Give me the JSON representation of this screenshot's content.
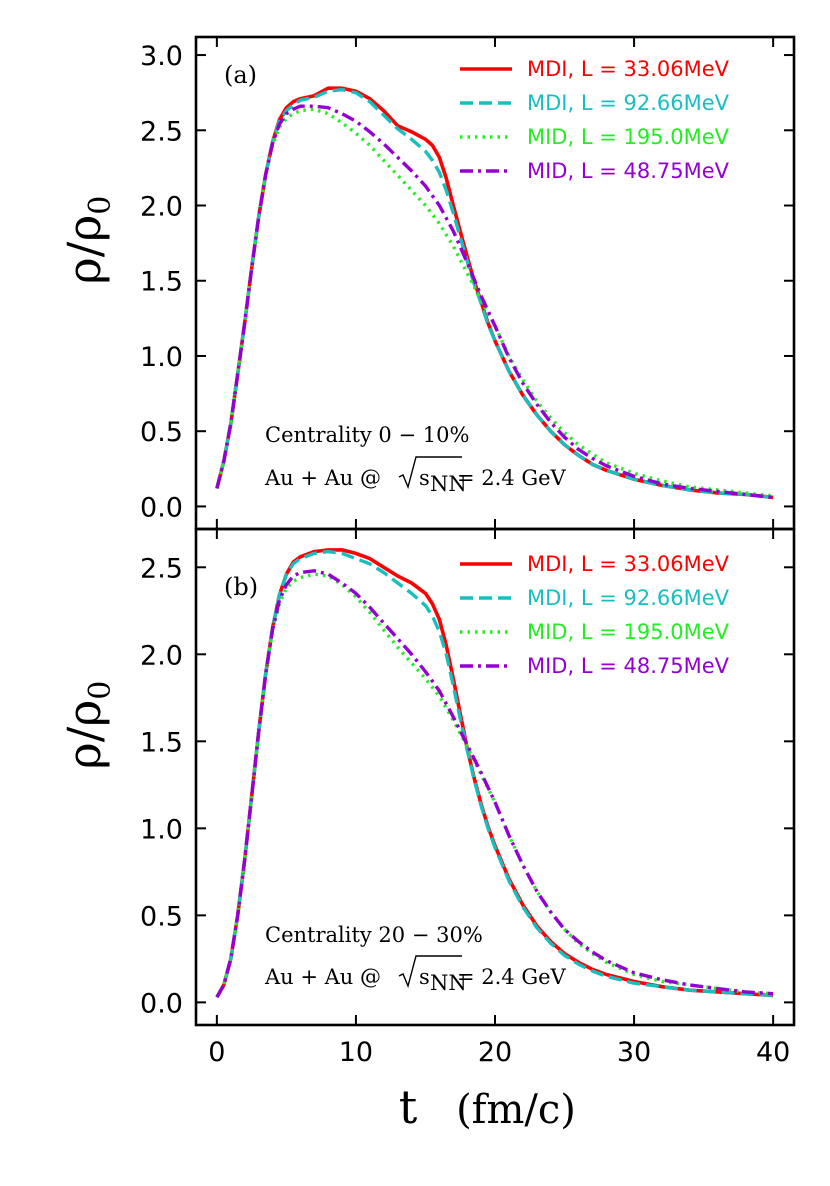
{
  "chart_data": [
    {
      "type": "line",
      "panel_label": "(a)",
      "xlabel_main": "t",
      "xlabel_unit": "(fm/c)",
      "ylabel": "ρ/ρ",
      "ylabel_sub": "0",
      "xlim": [
        -1.5,
        41.5
      ],
      "ylim": [
        -0.15,
        3.12
      ],
      "xticks": [
        0,
        10,
        20,
        30,
        40
      ],
      "yticks": [
        0.0,
        0.5,
        1.0,
        1.5,
        2.0,
        2.5,
        3.0
      ],
      "ytick_labels": [
        "0.0",
        "0.5",
        "1.0",
        "1.5",
        "2.0",
        "2.5",
        "3.0"
      ],
      "annotation_line1": "Centrality 0 − 10%",
      "annotation_line2_prefix": "Au + Au @",
      "annotation_line2_sqrt": "s",
      "annotation_line2_sub": "NN",
      "annotation_line2_suffix": " = 2.4 GeV",
      "series": [
        {
          "name": "MDI, L = 33.06MeV",
          "color": "#ff0000",
          "dash": "solid",
          "x": [
            0,
            0.5,
            1,
            1.5,
            2,
            2.5,
            3,
            3.5,
            4,
            4.5,
            5,
            5.5,
            6,
            7,
            8,
            9,
            10,
            11,
            12,
            13,
            14,
            15,
            15.5,
            16,
            16.5,
            17,
            17.5,
            18,
            18.5,
            19,
            19.5,
            20,
            21,
            22,
            23,
            24,
            25,
            26,
            27,
            28,
            30,
            32,
            34,
            36,
            38,
            40
          ],
          "y": [
            0.12,
            0.3,
            0.55,
            0.88,
            1.22,
            1.58,
            1.92,
            2.2,
            2.42,
            2.57,
            2.65,
            2.69,
            2.71,
            2.73,
            2.78,
            2.78,
            2.76,
            2.71,
            2.63,
            2.53,
            2.49,
            2.44,
            2.4,
            2.32,
            2.18,
            2.0,
            1.83,
            1.66,
            1.5,
            1.36,
            1.22,
            1.1,
            0.9,
            0.74,
            0.61,
            0.5,
            0.41,
            0.34,
            0.28,
            0.24,
            0.18,
            0.14,
            0.11,
            0.09,
            0.08,
            0.06
          ]
        },
        {
          "name": "MDI, L = 92.66MeV",
          "color": "#17bfbf",
          "dash": "dashed",
          "x": [
            0,
            0.5,
            1,
            1.5,
            2,
            2.5,
            3,
            3.5,
            4,
            4.5,
            5,
            5.5,
            6,
            7,
            8,
            9,
            10,
            11,
            12,
            13,
            14,
            15,
            15.5,
            16,
            16.5,
            17,
            17.5,
            18,
            18.5,
            19,
            19.5,
            20,
            21,
            22,
            23,
            24,
            25,
            26,
            27,
            28,
            30,
            32,
            34,
            36,
            38,
            40
          ],
          "y": [
            0.12,
            0.3,
            0.55,
            0.88,
            1.22,
            1.58,
            1.92,
            2.2,
            2.42,
            2.56,
            2.63,
            2.67,
            2.7,
            2.72,
            2.76,
            2.77,
            2.75,
            2.69,
            2.6,
            2.51,
            2.44,
            2.36,
            2.3,
            2.22,
            2.1,
            1.95,
            1.79,
            1.63,
            1.48,
            1.35,
            1.21,
            1.1,
            0.9,
            0.74,
            0.61,
            0.5,
            0.41,
            0.34,
            0.28,
            0.24,
            0.18,
            0.14,
            0.11,
            0.09,
            0.08,
            0.06
          ]
        },
        {
          "name": "MID, L = 195.0MeV",
          "color": "#22ee22",
          "dash": "dotted",
          "x": [
            0,
            0.5,
            1,
            1.5,
            2,
            2.5,
            3,
            3.5,
            4,
            4.5,
            5,
            5.5,
            6,
            7,
            8,
            9,
            10,
            11,
            12,
            13,
            14,
            15,
            16,
            17,
            18,
            19,
            20,
            21,
            22,
            23,
            24,
            25,
            26,
            27,
            28,
            30,
            32,
            34,
            36,
            38,
            40
          ],
          "y": [
            0.12,
            0.3,
            0.55,
            0.88,
            1.22,
            1.58,
            1.92,
            2.2,
            2.4,
            2.52,
            2.58,
            2.61,
            2.63,
            2.64,
            2.61,
            2.55,
            2.48,
            2.4,
            2.3,
            2.2,
            2.1,
            2.0,
            1.88,
            1.73,
            1.55,
            1.37,
            1.2,
            1.0,
            0.84,
            0.7,
            0.59,
            0.49,
            0.41,
            0.35,
            0.29,
            0.22,
            0.17,
            0.13,
            0.11,
            0.09,
            0.07
          ]
        },
        {
          "name": "MID, L = 48.75MeV",
          "color": "#9400d3",
          "dash": "dashdot",
          "x": [
            0,
            0.5,
            1,
            1.5,
            2,
            2.5,
            3,
            3.5,
            4,
            4.5,
            5,
            5.5,
            6,
            7,
            8,
            9,
            10,
            11,
            12,
            13,
            14,
            15,
            16,
            17,
            18,
            19,
            20,
            21,
            22,
            23,
            24,
            25,
            26,
            27,
            28,
            30,
            32,
            34,
            36,
            38,
            40
          ],
          "y": [
            0.12,
            0.3,
            0.55,
            0.88,
            1.22,
            1.58,
            1.92,
            2.2,
            2.41,
            2.54,
            2.61,
            2.64,
            2.66,
            2.66,
            2.65,
            2.61,
            2.56,
            2.49,
            2.41,
            2.32,
            2.23,
            2.13,
            2.0,
            1.83,
            1.62,
            1.4,
            1.2,
            0.99,
            0.82,
            0.68,
            0.56,
            0.46,
            0.38,
            0.32,
            0.27,
            0.2,
            0.15,
            0.12,
            0.1,
            0.08,
            0.06
          ]
        }
      ]
    },
    {
      "type": "line",
      "panel_label": "(b)",
      "xlabel_main": "t",
      "xlabel_unit": "(fm/c)",
      "ylabel": "ρ/ρ",
      "ylabel_sub": "0",
      "xlim": [
        -1.5,
        41.5
      ],
      "ylim": [
        -0.13,
        2.72
      ],
      "xticks": [
        0,
        10,
        20,
        30,
        40
      ],
      "xtick_labels": [
        "0",
        "10",
        "20",
        "30",
        "40"
      ],
      "yticks": [
        0.0,
        0.5,
        1.0,
        1.5,
        2.0,
        2.5
      ],
      "ytick_labels": [
        "0.0",
        "0.5",
        "1.0",
        "1.5",
        "2.0",
        "2.5"
      ],
      "annotation_line1": "Centrality 20 − 30%",
      "annotation_line2_prefix": "Au + Au @",
      "annotation_line2_sqrt": "s",
      "annotation_line2_sub": "NN",
      "annotation_line2_suffix": " = 2.4 GeV",
      "series": [
        {
          "name": "MDI, L = 33.06MeV",
          "color": "#ff0000",
          "dash": "solid",
          "x": [
            0,
            0.5,
            1,
            1.5,
            2,
            2.5,
            3,
            3.5,
            4,
            4.5,
            5,
            5.5,
            6,
            7,
            8,
            9,
            10,
            11,
            12,
            13,
            14,
            15,
            15.5,
            16,
            16.5,
            17,
            17.5,
            18,
            18.5,
            19,
            19.5,
            20,
            21,
            22,
            23,
            24,
            25,
            26,
            27,
            28,
            30,
            32,
            34,
            36,
            38,
            40
          ],
          "y": [
            0.03,
            0.1,
            0.25,
            0.5,
            0.82,
            1.18,
            1.55,
            1.88,
            2.15,
            2.34,
            2.46,
            2.53,
            2.56,
            2.59,
            2.6,
            2.6,
            2.58,
            2.55,
            2.5,
            2.45,
            2.41,
            2.35,
            2.29,
            2.2,
            2.05,
            1.86,
            1.66,
            1.46,
            1.29,
            1.14,
            1.01,
            0.9,
            0.71,
            0.56,
            0.44,
            0.35,
            0.28,
            0.23,
            0.19,
            0.16,
            0.12,
            0.09,
            0.07,
            0.06,
            0.05,
            0.04
          ]
        },
        {
          "name": "MDI, L = 92.66MeV",
          "color": "#17bfbf",
          "dash": "dashed",
          "x": [
            0,
            0.5,
            1,
            1.5,
            2,
            2.5,
            3,
            3.5,
            4,
            4.5,
            5,
            5.5,
            6,
            7,
            8,
            9,
            10,
            11,
            12,
            13,
            14,
            15,
            15.5,
            16,
            16.5,
            17,
            17.5,
            18,
            18.5,
            19,
            19.5,
            20,
            21,
            22,
            23,
            24,
            25,
            26,
            27,
            28,
            30,
            32,
            34,
            36,
            38,
            40
          ],
          "y": [
            0.03,
            0.1,
            0.25,
            0.5,
            0.82,
            1.18,
            1.55,
            1.88,
            2.15,
            2.34,
            2.46,
            2.52,
            2.55,
            2.58,
            2.59,
            2.58,
            2.55,
            2.52,
            2.47,
            2.41,
            2.35,
            2.28,
            2.22,
            2.13,
            2.0,
            1.82,
            1.63,
            1.45,
            1.28,
            1.13,
            1.0,
            0.89,
            0.7,
            0.55,
            0.43,
            0.34,
            0.27,
            0.22,
            0.18,
            0.15,
            0.11,
            0.09,
            0.07,
            0.06,
            0.05,
            0.04
          ]
        },
        {
          "name": "MID, L = 195.0MeV",
          "color": "#22ee22",
          "dash": "dotted",
          "x": [
            0,
            0.5,
            1,
            1.5,
            2,
            2.5,
            3,
            3.5,
            4,
            4.5,
            5,
            5.5,
            6,
            7,
            8,
            9,
            10,
            11,
            12,
            13,
            14,
            15,
            16,
            17,
            18,
            19,
            20,
            21,
            22,
            23,
            24,
            25,
            26,
            27,
            28,
            30,
            32,
            34,
            36,
            38,
            40
          ],
          "y": [
            0.03,
            0.1,
            0.25,
            0.5,
            0.82,
            1.18,
            1.55,
            1.88,
            2.13,
            2.29,
            2.38,
            2.42,
            2.44,
            2.46,
            2.45,
            2.4,
            2.33,
            2.24,
            2.14,
            2.04,
            1.95,
            1.86,
            1.76,
            1.62,
            1.47,
            1.31,
            1.15,
            0.96,
            0.79,
            0.64,
            0.52,
            0.42,
            0.34,
            0.28,
            0.23,
            0.16,
            0.12,
            0.1,
            0.08,
            0.06,
            0.05
          ]
        },
        {
          "name": "MID, L = 48.75MeV",
          "color": "#9400d3",
          "dash": "dashdot",
          "x": [
            0,
            0.5,
            1,
            1.5,
            2,
            2.5,
            3,
            3.5,
            4,
            4.5,
            5,
            5.5,
            6,
            7,
            8,
            9,
            10,
            11,
            12,
            13,
            14,
            15,
            16,
            17,
            18,
            19,
            20,
            21,
            22,
            23,
            24,
            25,
            26,
            27,
            28,
            30,
            32,
            34,
            36,
            38,
            40
          ],
          "y": [
            0.03,
            0.1,
            0.25,
            0.5,
            0.82,
            1.18,
            1.55,
            1.88,
            2.14,
            2.31,
            2.4,
            2.45,
            2.47,
            2.48,
            2.46,
            2.41,
            2.35,
            2.27,
            2.18,
            2.09,
            2.0,
            1.9,
            1.79,
            1.64,
            1.48,
            1.32,
            1.15,
            0.96,
            0.79,
            0.64,
            0.52,
            0.42,
            0.35,
            0.29,
            0.24,
            0.17,
            0.13,
            0.1,
            0.08,
            0.06,
            0.05
          ]
        }
      ]
    }
  ]
}
